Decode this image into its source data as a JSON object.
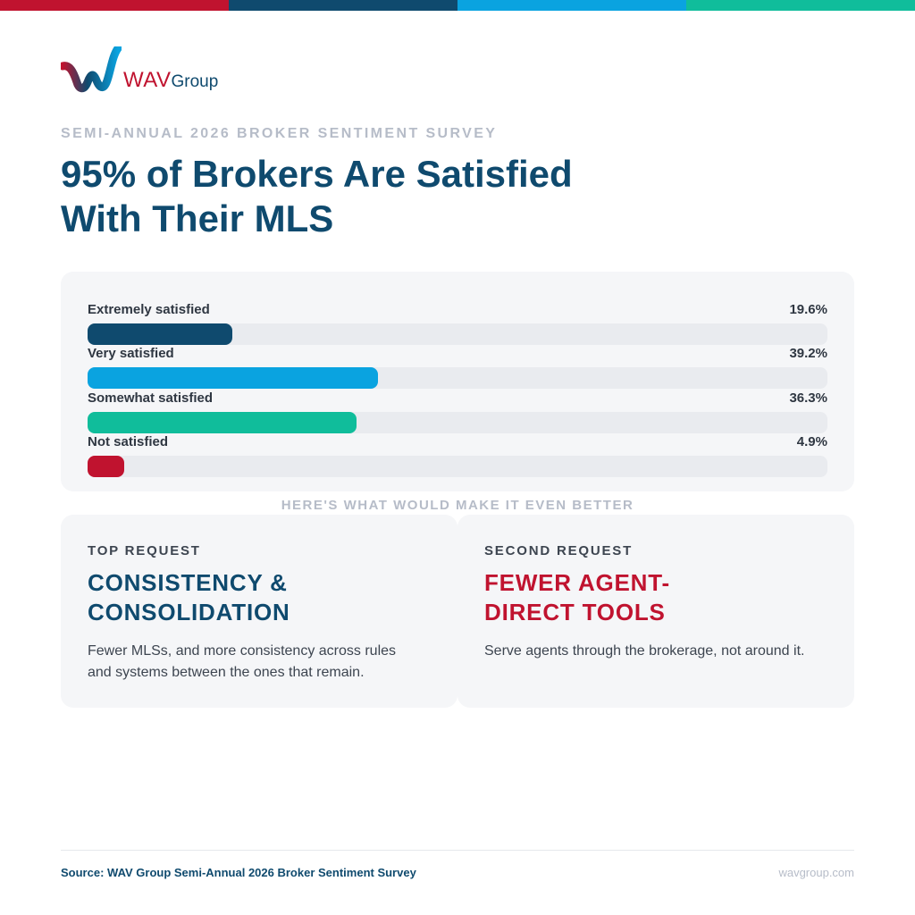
{
  "colors": {
    "navy": "#0f4a6e",
    "sky": "#0aa3e0",
    "teal": "#10bd9b",
    "crimson": "#c0132f"
  },
  "stripe_colors": [
    "#c0132f",
    "#0f4a6e",
    "#0aa3e0",
    "#10bd9b"
  ],
  "logo": {
    "icon": "wave-w-logo-icon",
    "wordmark": "WAV",
    "wordmark_suffix": "Group"
  },
  "header": {
    "eyebrow": "SEMI-ANNUAL 2026 BROKER SENTIMENT SURVEY",
    "title_line1": "95% of Brokers Are Satisfied",
    "title_line2": "With Their MLS"
  },
  "chart_data": {
    "type": "bar",
    "orientation": "horizontal",
    "categories": [
      "Extremely satisfied",
      "Very satisfied",
      "Somewhat satisfied",
      "Not satisfied"
    ],
    "values": [
      19.6,
      39.2,
      36.3,
      4.9
    ],
    "value_labels": [
      "19.6%",
      "39.2%",
      "36.3%",
      "4.9%"
    ],
    "bar_colors": [
      "#0f4a6e",
      "#0aa3e0",
      "#10bd9b",
      "#c0132f"
    ],
    "xlim": [
      0,
      100
    ],
    "unit": "%",
    "grid": false,
    "legend": "none"
  },
  "section_label": "HERE'S WHAT WOULD MAKE IT EVEN BETTER",
  "cards": [
    {
      "kicker": "TOP REQUEST",
      "heading_line1": "CONSISTENCY &",
      "heading_line2": "CONSOLIDATION",
      "heading_color": "#0f4a6e",
      "body_line1": "Fewer MLSs, and more consistency across rules",
      "body_line2": "and systems between the ones that remain."
    },
    {
      "kicker": "SECOND REQUEST",
      "heading_line1": "FEWER AGENT-",
      "heading_line2": "DIRECT TOOLS",
      "heading_color": "#c0132f",
      "body_line1": "Serve agents through the brokerage, not around it.",
      "body_line2": ""
    }
  ],
  "footer": {
    "source": "Source: WAV Group Semi-Annual 2026 Broker Sentiment Survey",
    "site": "wavgroup.com"
  }
}
